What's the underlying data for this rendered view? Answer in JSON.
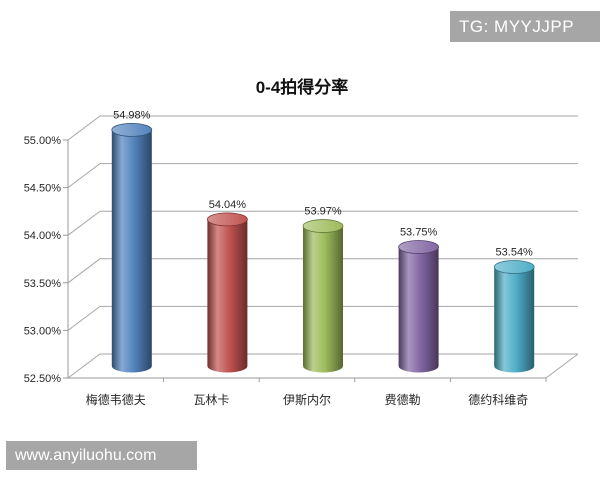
{
  "page": {
    "background": "#ffffff"
  },
  "watermarks": {
    "tg_badge": {
      "text": "TG: MYYJJPP",
      "bg": "#a6a6a6",
      "fg": "#ffffff"
    },
    "site_badge": {
      "text": "www.anyiluohu.com",
      "bg": "#a6a6a6",
      "fg": "#ffffff"
    }
  },
  "chart_data": {
    "type": "bar",
    "subtype": "3d-cylinder",
    "title": "0-4拍得分率",
    "categories": [
      "梅德韦德夫",
      "瓦林卡",
      "伊斯内尔",
      "费德勒",
      "德约科维奇"
    ],
    "values": [
      54.98,
      54.04,
      53.97,
      53.75,
      53.54
    ],
    "data_labels": [
      "54.98%",
      "54.04%",
      "53.97%",
      "53.75%",
      "53.54%"
    ],
    "bar_colors": [
      "#4F81BD",
      "#C0504D",
      "#9BBB59",
      "#8064A2",
      "#4BACC6"
    ],
    "xlabel": "",
    "ylabel": "",
    "y_axis": {
      "min": 52.5,
      "max": 55.0,
      "step": 0.5,
      "tick_labels": [
        "52.50%",
        "53.00%",
        "53.50%",
        "54.00%",
        "54.50%",
        "55.00%"
      ]
    },
    "grid": true,
    "legend": "none",
    "grid_color": "#a6a6a6",
    "axis_color": "#9a9a9a",
    "text_color": "#262626"
  }
}
